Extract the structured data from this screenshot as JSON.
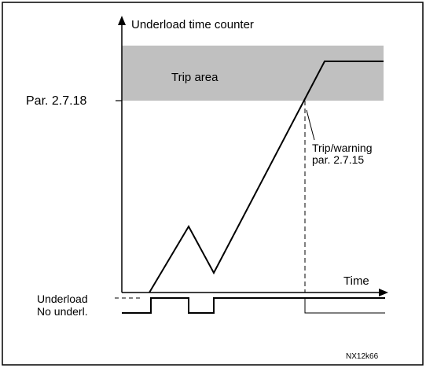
{
  "y_axis_label": "Underload time counter",
  "x_axis_label": "Time",
  "trip_area_label": "Trip area",
  "threshold_label": "Par. 2.7.18",
  "trip_label": {
    "line1": "Trip/warning",
    "line2": "par. 2.7.15"
  },
  "signal_labels": {
    "high": "Underload",
    "low": "No underl."
  },
  "figure_code": "NX12k66"
}
